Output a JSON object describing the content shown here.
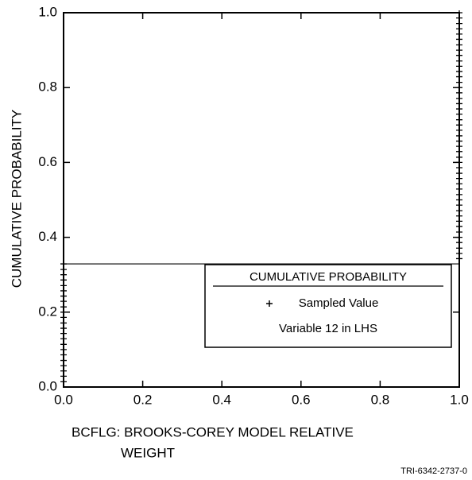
{
  "chart_data": {
    "type": "step",
    "xlabel_lines": [
      "BCFLG: BROOKS-COREY MODEL RELATIVE",
      "WEIGHT"
    ],
    "ylabel": "CUMULATIVE PROBABILITY",
    "legend_title": "CUMULATIVE PROBABILITY",
    "legend_note": "Variable 12 in LHS",
    "legend": "lower right",
    "footnote": "TRI-6342-2737-0",
    "xlim": [
      0,
      1
    ],
    "ylim": [
      0,
      1
    ],
    "xticks": [
      {
        "value": 0,
        "label": "0.0"
      },
      0.2,
      0.4,
      0.6,
      0.8,
      {
        "value": 1,
        "label": "1.0"
      }
    ],
    "yticks": [
      {
        "value": 0,
        "label": "0.0"
      },
      0.2,
      0.4,
      0.6,
      0.8,
      {
        "value": 1,
        "label": "1.0"
      }
    ],
    "series": [
      {
        "name": "Sampled Value",
        "color": "#000000",
        "x": [
          0,
          0,
          0,
          0,
          0,
          0,
          0,
          0,
          0,
          0,
          0,
          0,
          0,
          0,
          0,
          0,
          0,
          0,
          0,
          0,
          0,
          0,
          0,
          1,
          1,
          1,
          1,
          1,
          1,
          1,
          1,
          1,
          1,
          1,
          1,
          1,
          1,
          1,
          1,
          1,
          1,
          1,
          1,
          1,
          1,
          1,
          1,
          1,
          1,
          1,
          1,
          1,
          1,
          1,
          1,
          1,
          1,
          1,
          1,
          1,
          1,
          1,
          1,
          1,
          1,
          1,
          1,
          1,
          1,
          1
        ],
        "values": [
          0.014,
          0.029,
          0.043,
          0.057,
          0.071,
          0.086,
          0.1,
          0.114,
          0.129,
          0.143,
          0.157,
          0.171,
          0.186,
          0.2,
          0.214,
          0.229,
          0.243,
          0.257,
          0.271,
          0.286,
          0.3,
          0.314,
          0.329,
          0.343,
          0.357,
          0.371,
          0.386,
          0.4,
          0.414,
          0.429,
          0.443,
          0.457,
          0.471,
          0.486,
          0.5,
          0.514,
          0.529,
          0.543,
          0.557,
          0.571,
          0.586,
          0.6,
          0.614,
          0.629,
          0.643,
          0.657,
          0.671,
          0.686,
          0.7,
          0.714,
          0.729,
          0.743,
          0.757,
          0.771,
          0.786,
          0.8,
          0.814,
          0.829,
          0.843,
          0.857,
          0.871,
          0.886,
          0.9,
          0.914,
          0.929,
          0.943,
          0.957,
          0.971,
          0.986,
          1
        ]
      }
    ]
  }
}
